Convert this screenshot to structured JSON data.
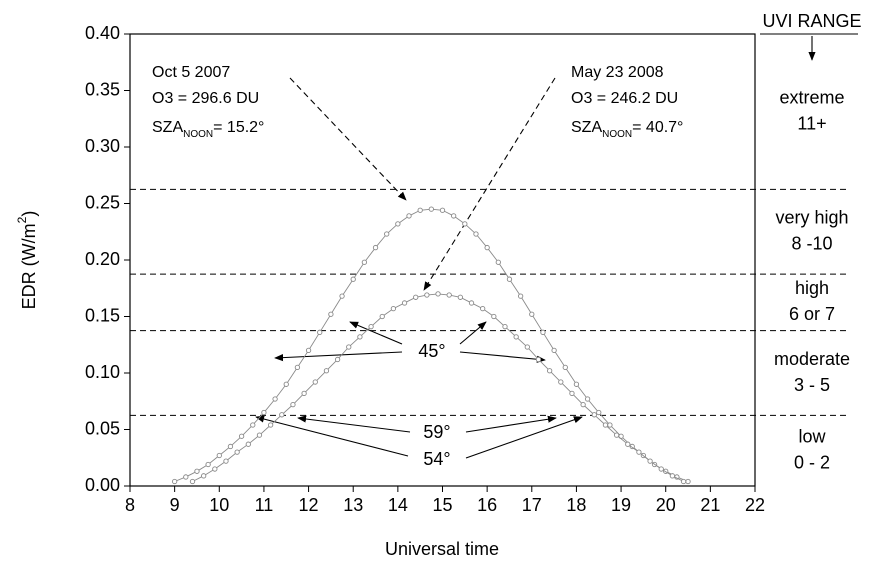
{
  "chart_data": {
    "type": "line",
    "xlabel": "Universal time",
    "ylabel": {
      "text": "EDR (W/m",
      "sup": "2",
      "end": ")"
    },
    "xlim": [
      8,
      22
    ],
    "xticks": [
      8,
      9,
      10,
      11,
      12,
      13,
      14,
      15,
      16,
      17,
      18,
      19,
      20,
      21,
      22
    ],
    "ylim": [
      0,
      0.4
    ],
    "yticks": [
      {
        "value": 0,
        "label": "0.00"
      },
      {
        "value": 0.05,
        "label": "0.05"
      },
      {
        "value": 0.1,
        "label": "0.10"
      },
      {
        "value": 0.15,
        "label": "0.15"
      },
      {
        "value": 0.2,
        "label": "0.20"
      },
      {
        "value": 0.25,
        "label": "0.25"
      },
      {
        "value": 0.3,
        "label": "0.30"
      },
      {
        "value": 0.35,
        "label": "0.35"
      },
      {
        "value": 0.4,
        "label": "0.40"
      }
    ],
    "series": [
      {
        "name": "Oct 5 2007",
        "color": "#8a8a8a",
        "x": [
          9,
          9.25,
          9.5,
          9.75,
          10,
          10.25,
          10.5,
          10.75,
          11,
          11.25,
          11.5,
          11.75,
          12,
          12.25,
          12.5,
          12.75,
          13,
          13.25,
          13.5,
          13.75,
          14,
          14.25,
          14.5,
          14.75,
          15,
          15.25,
          15.5,
          15.75,
          16,
          16.25,
          16.5,
          16.75,
          17,
          17.25,
          17.5,
          17.75,
          18,
          18.25,
          18.5,
          18.75,
          19,
          19.25,
          19.5,
          19.75,
          20,
          20.25,
          20.5
        ],
        "values": [
          0.004,
          0.008,
          0.013,
          0.019,
          0.027,
          0.035,
          0.044,
          0.054,
          0.065,
          0.077,
          0.09,
          0.105,
          0.12,
          0.136,
          0.152,
          0.168,
          0.183,
          0.198,
          0.211,
          0.223,
          0.232,
          0.239,
          0.244,
          0.245,
          0.244,
          0.239,
          0.232,
          0.223,
          0.211,
          0.198,
          0.183,
          0.168,
          0.152,
          0.136,
          0.12,
          0.105,
          0.09,
          0.077,
          0.065,
          0.054,
          0.044,
          0.035,
          0.027,
          0.019,
          0.013,
          0.008,
          0.004
        ]
      },
      {
        "name": "May 23 2008",
        "color": "#8a8a8a",
        "x": [
          9.4,
          9.65,
          9.9,
          10.15,
          10.4,
          10.65,
          10.9,
          11.15,
          11.4,
          11.65,
          11.9,
          12.15,
          12.4,
          12.65,
          12.9,
          13.15,
          13.4,
          13.65,
          13.9,
          14.15,
          14.4,
          14.65,
          14.9,
          15.15,
          15.4,
          15.65,
          15.9,
          16.15,
          16.4,
          16.65,
          16.9,
          17.15,
          17.4,
          17.65,
          17.9,
          18.15,
          18.4,
          18.65,
          18.9,
          19.15,
          19.4,
          19.65,
          19.9,
          20.15,
          20.4
        ],
        "values": [
          0.004,
          0.009,
          0.015,
          0.022,
          0.03,
          0.037,
          0.045,
          0.054,
          0.063,
          0.072,
          0.082,
          0.092,
          0.102,
          0.112,
          0.123,
          0.132,
          0.141,
          0.15,
          0.157,
          0.162,
          0.167,
          0.169,
          0.17,
          0.169,
          0.167,
          0.162,
          0.157,
          0.15,
          0.141,
          0.132,
          0.123,
          0.112,
          0.102,
          0.092,
          0.082,
          0.072,
          0.063,
          0.054,
          0.045,
          0.037,
          0.03,
          0.022,
          0.015,
          0.009,
          0.004
        ]
      }
    ],
    "uvi_title": "UVI RANGE",
    "thresholds": [
      0.0625,
      0.1375,
      0.1875,
      0.2625
    ],
    "uvi_ranges": [
      {
        "name": "low",
        "range": "0 - 2"
      },
      {
        "name": "moderate",
        "range": "3 - 5"
      },
      {
        "name": "high",
        "range": "6 or 7"
      },
      {
        "name": "very high",
        "range": "8 -10"
      },
      {
        "name": "extreme",
        "range": "11+"
      }
    ],
    "notes": [
      {
        "date": "Oct 5 2007",
        "ozone": "O3 = 296.6 DU",
        "sza": "SZA",
        "sza_sub": "NOON",
        "sza_value": "= 15.2°"
      },
      {
        "date": "May 23 2008",
        "ozone": "O3 = 246.2 DU",
        "sza": "SZA",
        "sza_sub": "NOON",
        "sza_value": "= 40.7°"
      }
    ],
    "angle_labels": [
      "45°",
      "59°",
      "54°"
    ]
  }
}
